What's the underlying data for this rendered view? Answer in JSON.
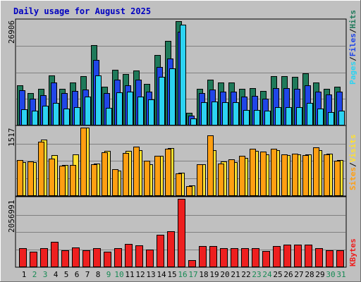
{
  "chart_data": [
    {
      "type": "bar",
      "title": "Daily usage for August 2025",
      "panel": "top",
      "ymax_label": "26906",
      "categories": [
        "1",
        "2",
        "3",
        "4",
        "5",
        "6",
        "7",
        "8",
        "9",
        "10",
        "11",
        "12",
        "13",
        "14",
        "15",
        "16",
        "17",
        "18",
        "19",
        "20",
        "21",
        "22",
        "23",
        "24",
        "25",
        "26",
        "27",
        "28",
        "29",
        "30",
        "31"
      ],
      "series": [
        {
          "name": "Hits",
          "color": "#1f7a5a",
          "values": [
            10200,
            8200,
            9300,
            12800,
            9400,
            11000,
            12700,
            20600,
            9800,
            14200,
            13200,
            14100,
            10700,
            18200,
            21700,
            26906,
            3100,
            9400,
            11700,
            11000,
            11000,
            9400,
            9600,
            8800,
            12700,
            12700,
            12400,
            13400,
            11000,
            9300,
            9800
          ]
        },
        {
          "name": "Files",
          "color": "#2046e8",
          "values": [
            8900,
            6700,
            7600,
            11000,
            8300,
            8700,
            9100,
            16900,
            8200,
            11700,
            10300,
            11800,
            8600,
            15100,
            17200,
            24100,
            2400,
            8300,
            9200,
            8600,
            8600,
            7400,
            7500,
            6700,
            9500,
            9600,
            9400,
            10200,
            8600,
            7800,
            8600
          ]
        },
        {
          "name": "Pages",
          "color": "#2cd3f1",
          "values": [
            4000,
            3700,
            4900,
            5600,
            4200,
            4600,
            7400,
            12900,
            4400,
            8400,
            8600,
            7300,
            6600,
            12500,
            14700,
            26000,
            1600,
            5800,
            6100,
            5800,
            5800,
            3800,
            3900,
            3700,
            4600,
            4500,
            4600,
            5600,
            4300,
            3300,
            3700
          ]
        }
      ]
    },
    {
      "type": "bar",
      "panel": "middle",
      "ymax_label": "1517",
      "categories": [
        "1",
        "2",
        "3",
        "4",
        "5",
        "6",
        "7",
        "8",
        "9",
        "10",
        "11",
        "12",
        "13",
        "14",
        "15",
        "16",
        "17",
        "18",
        "19",
        "20",
        "21",
        "22",
        "23",
        "24",
        "25",
        "26",
        "27",
        "28",
        "29",
        "30",
        "31"
      ],
      "series": [
        {
          "name": "Visits",
          "color": "#ffe030",
          "values": [
            750,
            740,
            1250,
            900,
            680,
            920,
            1520,
            720,
            1000,
            550,
            1000,
            1010,
            700,
            880,
            1060,
            510,
            220,
            700,
            1010,
            760,
            750,
            840,
            1000,
            920,
            1020,
            910,
            920,
            920,
            1010,
            940,
            790
          ]
        },
        {
          "name": "Sites",
          "color": "#ff9f12",
          "values": [
            790,
            760,
            1200,
            820,
            660,
            680,
            1517,
            700,
            960,
            580,
            950,
            1090,
            770,
            890,
            1040,
            490,
            200,
            700,
            1350,
            720,
            800,
            880,
            1050,
            980,
            1050,
            920,
            930,
            910,
            1080,
            920,
            780
          ]
        }
      ]
    },
    {
      "type": "bar",
      "panel": "bottom",
      "ymax_label": "2056991",
      "categories": [
        "1",
        "2",
        "3",
        "4",
        "5",
        "6",
        "7",
        "8",
        "9",
        "10",
        "11",
        "12",
        "13",
        "14",
        "15",
        "16",
        "17",
        "18",
        "19",
        "20",
        "21",
        "22",
        "23",
        "24",
        "25",
        "26",
        "27",
        "28",
        "29",
        "30",
        "31"
      ],
      "series": [
        {
          "name": "KBytes",
          "color": "#ee1f1f",
          "values": [
            560000,
            460000,
            560000,
            760000,
            500000,
            570000,
            490000,
            560000,
            460000,
            550000,
            680000,
            640000,
            520000,
            960000,
            1070000,
            2056991,
            200000,
            630000,
            620000,
            560000,
            560000,
            560000,
            560000,
            480000,
            620000,
            660000,
            660000,
            660000,
            560000,
            490000,
            490000
          ]
        }
      ]
    }
  ],
  "weekend_color": "#168a54",
  "weekday_color": "#000000",
  "weekend_days": [
    "2",
    "3",
    "9",
    "10",
    "16",
    "17",
    "23",
    "24",
    "30",
    "31"
  ],
  "legend_top": [
    "Pages",
    "/",
    "Files",
    "/",
    "Hits"
  ],
  "legend_top_colors": [
    "#2cd3f1",
    "#000000",
    "#2046e8",
    "#000000",
    "#1f7a5a"
  ],
  "legend_mid": [
    "Sites",
    "/",
    "Visits"
  ],
  "legend_mid_colors": [
    "#ff9f12",
    "#000000",
    "#ffe030"
  ],
  "legend_bot": [
    "KBytes"
  ],
  "legend_bot_colors": [
    "#ee1f1f"
  ]
}
